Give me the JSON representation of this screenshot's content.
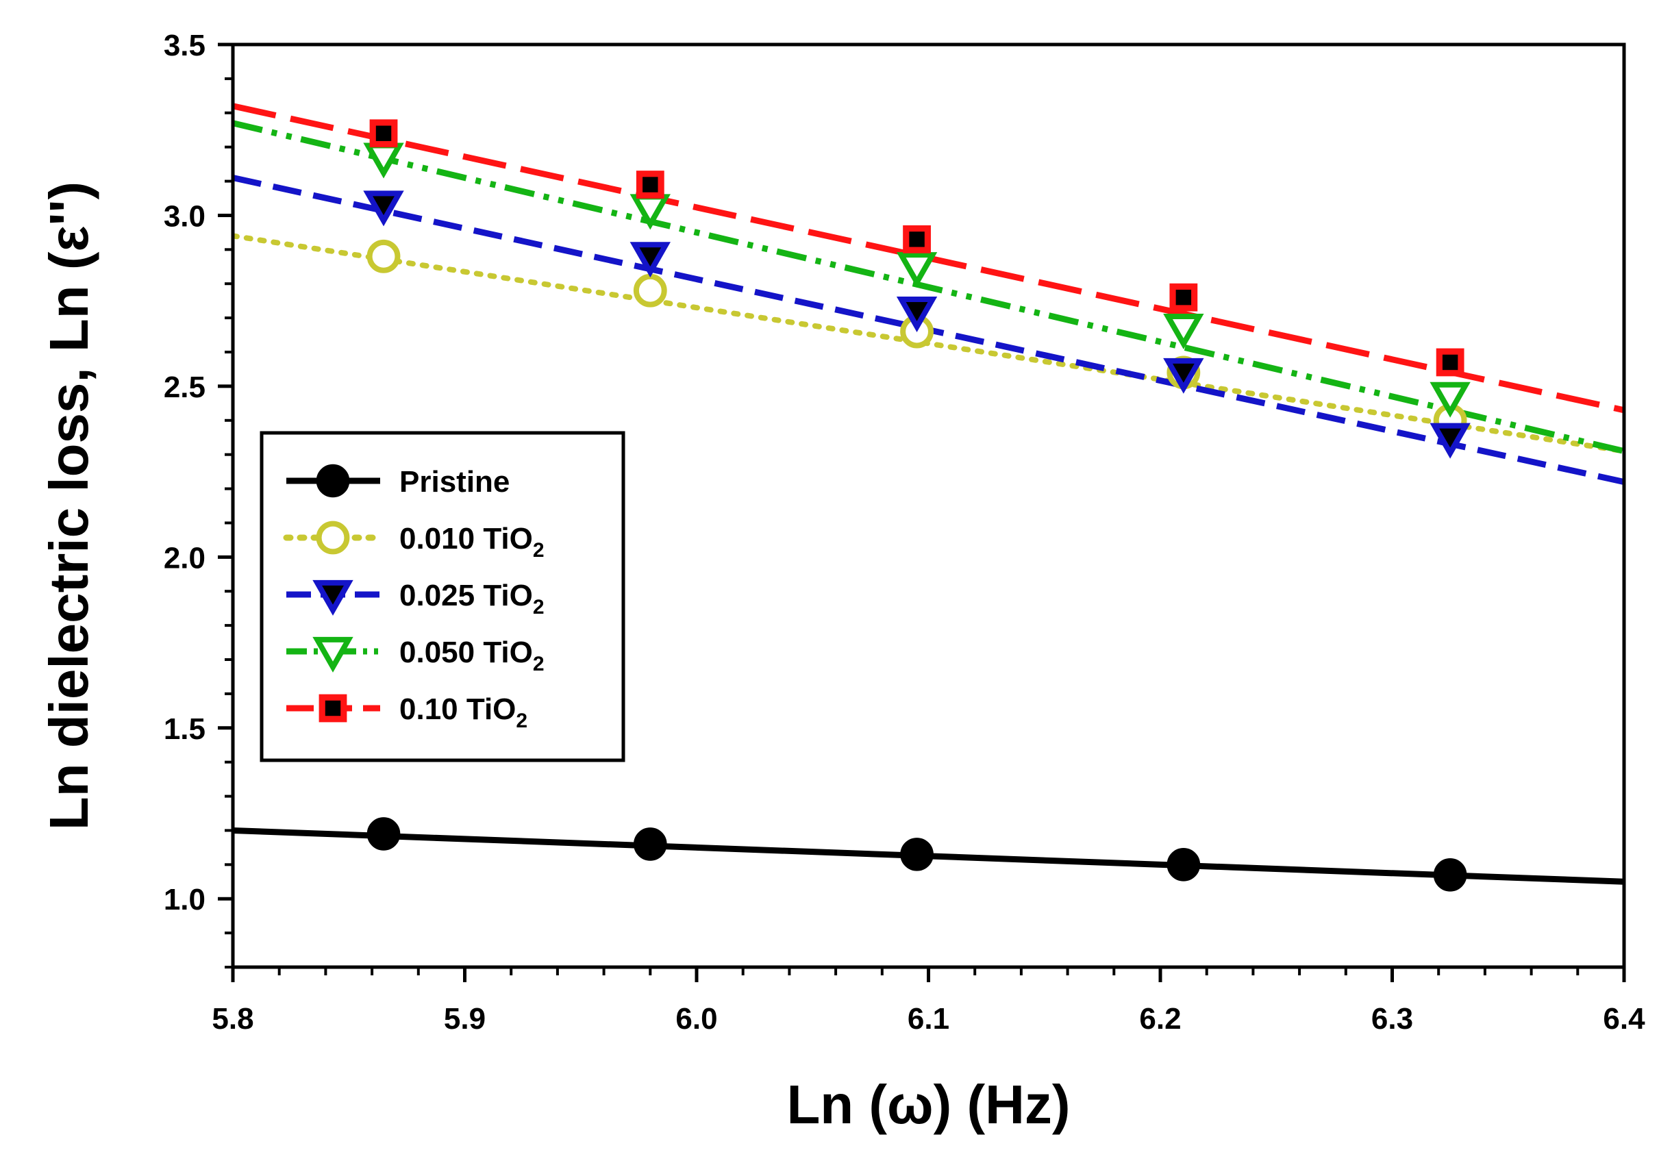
{
  "chart_data": {
    "type": "line",
    "title": "",
    "xlabel": "Ln (ω) (Hz)",
    "ylabel": "Ln dielectric loss, Ln (ε'')",
    "xlim": [
      5.8,
      6.4
    ],
    "ylim": [
      0.8,
      3.5
    ],
    "x_ticks": [
      "5.8",
      "5.9",
      "6.0",
      "6.1",
      "6.2",
      "6.3",
      "6.4"
    ],
    "y_ticks": [
      "1.0",
      "1.5",
      "2.0",
      "2.5",
      "3.0",
      "3.5"
    ],
    "grid": false,
    "legend_position": "middle-left",
    "x": [
      5.865,
      5.98,
      6.095,
      6.21,
      6.325
    ],
    "series": [
      {
        "name": "Pristine",
        "label_main": "Pristine",
        "label_sub": "",
        "color": "#000000",
        "marker": "filled-circle",
        "line": "solid",
        "values": [
          1.19,
          1.16,
          1.13,
          1.1,
          1.07
        ],
        "fit": [
          [
            5.8,
            1.2
          ],
          [
            6.4,
            1.05
          ]
        ]
      },
      {
        "name": "0.010 TiO2",
        "label_main": "0.010 TiO",
        "label_sub": "2",
        "color": "#c8c832",
        "marker": "open-circle",
        "line": "dotted",
        "values": [
          2.88,
          2.78,
          2.66,
          2.54,
          2.4
        ],
        "fit": [
          [
            5.8,
            2.94
          ],
          [
            6.4,
            2.31
          ]
        ]
      },
      {
        "name": "0.025 TiO2",
        "label_main": "0.025 TiO",
        "label_sub": "2",
        "color": "#1414c8",
        "marker": "filled-triangle-down",
        "line": "dashed",
        "values": [
          3.03,
          2.88,
          2.72,
          2.54,
          2.35
        ],
        "fit": [
          [
            5.8,
            3.11
          ],
          [
            6.4,
            2.22
          ]
        ]
      },
      {
        "name": "0.050 TiO2",
        "label_main": "0.050 TiO",
        "label_sub": "2",
        "color": "#14b414",
        "marker": "open-triangle-down",
        "line": "dash-dot-dot",
        "values": [
          3.17,
          3.02,
          2.85,
          2.67,
          2.47
        ],
        "fit": [
          [
            5.8,
            3.27
          ],
          [
            6.4,
            2.31
          ]
        ]
      },
      {
        "name": "0.10 TiO2",
        "label_main": "0.10 TiO",
        "label_sub": "2",
        "color": "#ff1414",
        "marker": "square-with-black-center",
        "line": "long-dash",
        "values": [
          3.24,
          3.09,
          2.93,
          2.76,
          2.57
        ],
        "fit": [
          [
            5.8,
            3.32
          ],
          [
            6.4,
            2.43
          ]
        ]
      }
    ]
  }
}
